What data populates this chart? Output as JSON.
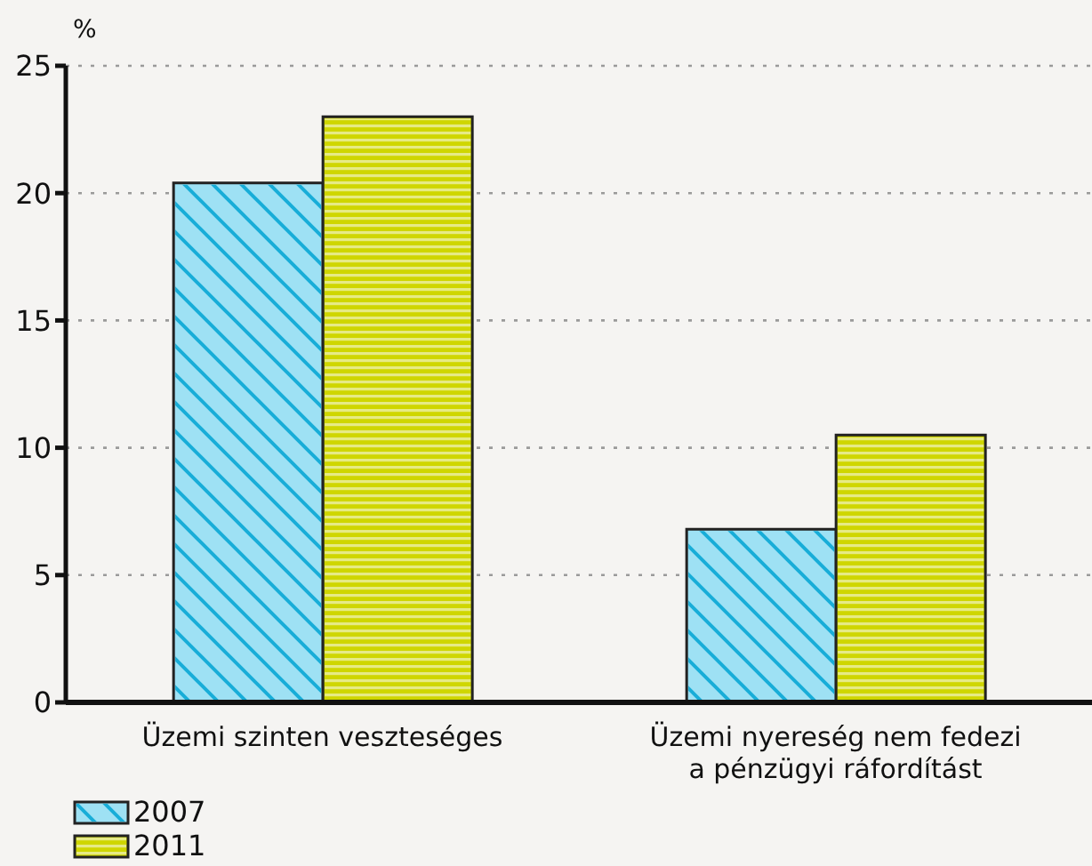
{
  "chart_data": {
    "type": "bar",
    "ylabel": "%",
    "categories": [
      "Üzemi szinten veszteséges",
      "Üzemi nyereség nem fedezi a pénzügyi ráfordítást"
    ],
    "series": [
      {
        "name": "2007",
        "color": "#9ee1f4",
        "values": [
          20.4,
          6.8
        ]
      },
      {
        "name": "2011",
        "color": "#cfd600",
        "values": [
          23.0,
          10.5
        ]
      }
    ],
    "ylim": [
      0,
      25
    ],
    "yticks": [
      0,
      5,
      10,
      15,
      20,
      25
    ],
    "grid": "y",
    "legend": "bottom left"
  }
}
